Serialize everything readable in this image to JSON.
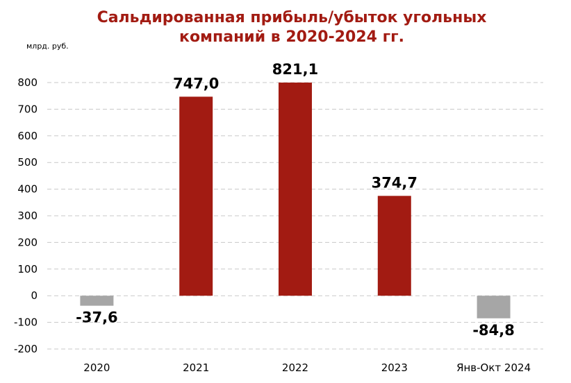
{
  "chart_data": {
    "type": "bar",
    "title_line1": "Сальдированная прибыль/убыток угольных",
    "title_line2": "компаний в 2020-2024 гг.",
    "unit": "млрд. руб.",
    "categories": [
      "2020",
      "2021",
      "2022",
      "2023",
      "Янв-Окт 2024"
    ],
    "values": [
      -37.6,
      747.0,
      821.1,
      374.7,
      -84.8
    ],
    "data_labels": [
      "-37,6",
      "747,0",
      "821,1",
      "374,7",
      "-84,8"
    ],
    "bar_colors": [
      "#a6a6a6",
      "#a21b12",
      "#a21b12",
      "#a21b12",
      "#a6a6a6"
    ],
    "ylim": [
      -200,
      800
    ],
    "yticks": [
      -200,
      -100,
      0,
      100,
      200,
      300,
      400,
      500,
      600,
      700,
      800
    ],
    "grid": "horizontal dashed",
    "legend": "none",
    "colors": {
      "positive": "#a21b12",
      "negative": "#a6a6a6",
      "title": "#a21b12",
      "grid": "#c8c8c8"
    }
  }
}
